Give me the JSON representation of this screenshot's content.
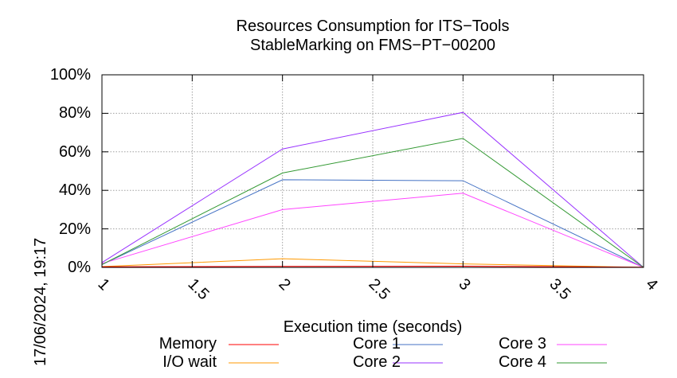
{
  "chart_data": {
    "type": "line",
    "title": "Resources Consumption for ITS−Tools",
    "subtitle": "StableMarking on FMS−PT−00200",
    "xlabel": "Execution time (seconds)",
    "ylabel": "",
    "xlim": [
      1,
      4
    ],
    "ylim": [
      0,
      100
    ],
    "xticks": [
      "1",
      "1.5",
      "2",
      "2.5",
      "3",
      "3.5",
      "4"
    ],
    "xtick_values": [
      1,
      1.5,
      2,
      2.5,
      3,
      3.5,
      4
    ],
    "yticks": [
      "0%",
      "20%",
      "40%",
      "60%",
      "80%",
      "100%"
    ],
    "ytick_values": [
      0,
      20,
      40,
      60,
      80,
      100
    ],
    "grid": true,
    "legend_position": "bottom",
    "x": [
      1,
      2,
      3,
      4
    ],
    "series": [
      {
        "name": "Memory",
        "color": "#ff0000",
        "values": [
          0.3,
          0.5,
          0.6,
          0.1
        ]
      },
      {
        "name": "I/O wait",
        "color": "#ff9900",
        "values": [
          0.4,
          4.5,
          1.8,
          0
        ]
      },
      {
        "name": "Core 1",
        "color": "#4472c4",
        "values": [
          1.5,
          45.5,
          45,
          0
        ]
      },
      {
        "name": "Core 2",
        "color": "#9933ff",
        "values": [
          2.5,
          61.5,
          80.5,
          0
        ]
      },
      {
        "name": "Core 3",
        "color": "#ff44ff",
        "values": [
          2,
          30,
          38.5,
          0
        ]
      },
      {
        "name": "Core 4",
        "color": "#339933",
        "values": [
          1.5,
          49,
          67,
          0
        ]
      }
    ]
  },
  "timestamp": "17/06/2024, 19:17"
}
